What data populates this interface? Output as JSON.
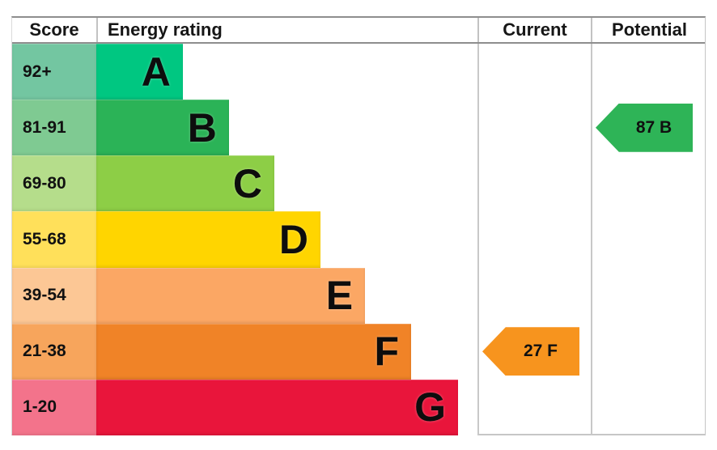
{
  "header": {
    "score": "Score",
    "rating": "Energy rating",
    "current": "Current",
    "potential": "Potential"
  },
  "rows": [
    {
      "band": "A",
      "score": "92+",
      "letter": "A",
      "bar_color": "#00c781",
      "score_color": "#73c6a1",
      "bar_width": "22.7%"
    },
    {
      "band": "B",
      "score": "81-91",
      "letter": "B",
      "bar_color": "#2bb357",
      "score_color": "#7fca92",
      "bar_width": "34.8%"
    },
    {
      "band": "C",
      "score": "69-80",
      "letter": "C",
      "bar_color": "#8dce46",
      "score_color": "#b5dd8b",
      "bar_width": "46.7%"
    },
    {
      "band": "D",
      "score": "55-68",
      "letter": "D",
      "bar_color": "#ffd500",
      "score_color": "#ffe05a",
      "bar_width": "58.8%"
    },
    {
      "band": "E",
      "score": "39-54",
      "letter": "E",
      "bar_color": "#fba764",
      "score_color": "#fcc795",
      "bar_width": "70.5%"
    },
    {
      "band": "F",
      "score": "21-38",
      "letter": "F",
      "bar_color": "#f08327",
      "score_color": "#f7a55c",
      "bar_width": "82.6%"
    },
    {
      "band": "G",
      "score": "1-20",
      "letter": "G",
      "bar_color": "#e9153b",
      "score_color": "#f3738b",
      "bar_width": "94.9%"
    }
  ],
  "current": {
    "label": "27 F",
    "value": 27,
    "band": "F",
    "color": "#f7941e"
  },
  "potential": {
    "label": "87 B",
    "value": 87,
    "band": "B",
    "color": "#2eb457"
  },
  "chart_data": {
    "type": "bar",
    "title": "Energy rating (EPC) chart",
    "columns": [
      "Score",
      "Energy rating",
      "Current",
      "Potential"
    ],
    "categories": [
      "A",
      "B",
      "C",
      "D",
      "E",
      "F",
      "G"
    ],
    "score_ranges": [
      "92+",
      "81-91",
      "69-80",
      "55-68",
      "39-54",
      "21-38",
      "1-20"
    ],
    "bar_widths_pct_of_rating_column": [
      22.7,
      34.8,
      46.7,
      58.8,
      70.5,
      82.6,
      94.9
    ],
    "bar_colors": [
      "#00c781",
      "#2bb357",
      "#8dce46",
      "#ffd500",
      "#fba764",
      "#f08327",
      "#e9153b"
    ],
    "score_cell_colors": [
      "#73c6a1",
      "#7fca92",
      "#b5dd8b",
      "#ffe05a",
      "#fcc795",
      "#f7a55c",
      "#f3738b"
    ],
    "current": {
      "score": 27,
      "band": "F",
      "arrow_color": "#f7941e",
      "arrow_direction": "left"
    },
    "potential": {
      "score": 87,
      "band": "B",
      "arrow_color": "#2eb457",
      "arrow_direction": "left"
    },
    "legend_position": "none",
    "grid": false
  }
}
